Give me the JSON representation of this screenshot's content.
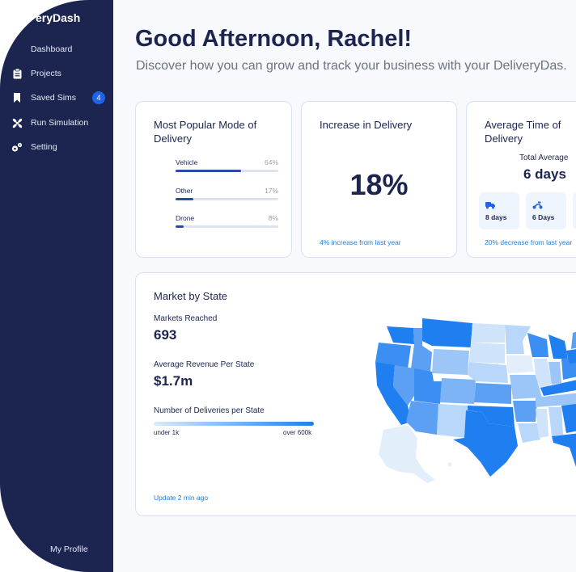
{
  "sidebar": {
    "brand": "eryDash",
    "items": [
      {
        "label": "Dashboard",
        "icon": "home-icon"
      },
      {
        "label": "Projects",
        "icon": "clipboard-icon"
      },
      {
        "label": "Saved Sims",
        "icon": "bookmark-icon",
        "badge": "4"
      },
      {
        "label": "Run Simulation",
        "icon": "fan-icon"
      },
      {
        "label": "Setting",
        "icon": "gears-icon"
      }
    ],
    "profile": "My Profile"
  },
  "header": {
    "greeting": "Good Afternoon, Rachel!",
    "subtitle": "Discover how you can grow and track your business with your DeliveryDas."
  },
  "popular_mode": {
    "title": "Most Popular Mode of Delivery",
    "rows": [
      {
        "name": "Vehicle",
        "pct": "64%",
        "value": 0.64
      },
      {
        "name": "Other",
        "pct": "17%",
        "value": 0.17
      },
      {
        "name": "Drone",
        "pct": "8%",
        "value": 0.08
      }
    ]
  },
  "increase": {
    "title": "Increase in Delivery",
    "value": "18%",
    "footer": "4% increase from last year"
  },
  "avg_time": {
    "title": "Average Time of Delivery",
    "total_label": "Total Average",
    "total_value": "6 days",
    "modes": [
      {
        "icon": "truck-icon",
        "value": "8 days"
      },
      {
        "icon": "scooter-icon",
        "value": "6 Days"
      }
    ],
    "footer": "20% decrease from last year"
  },
  "market": {
    "title": "Market by State",
    "markets_label": "Markets Reached",
    "markets_value": "693",
    "revenue_label": "Average Revenue Per State",
    "revenue_value": "$1.7m",
    "legend_title": "Number of Deliveries per State",
    "legend_low": "under 1k",
    "legend_high": "over 600k",
    "update": "Update 2 min ago"
  },
  "colors": {
    "sidebar": "#1c2550",
    "accent": "#1e63e9",
    "text_dark": "#1c2550",
    "link": "#1f7fd6"
  }
}
